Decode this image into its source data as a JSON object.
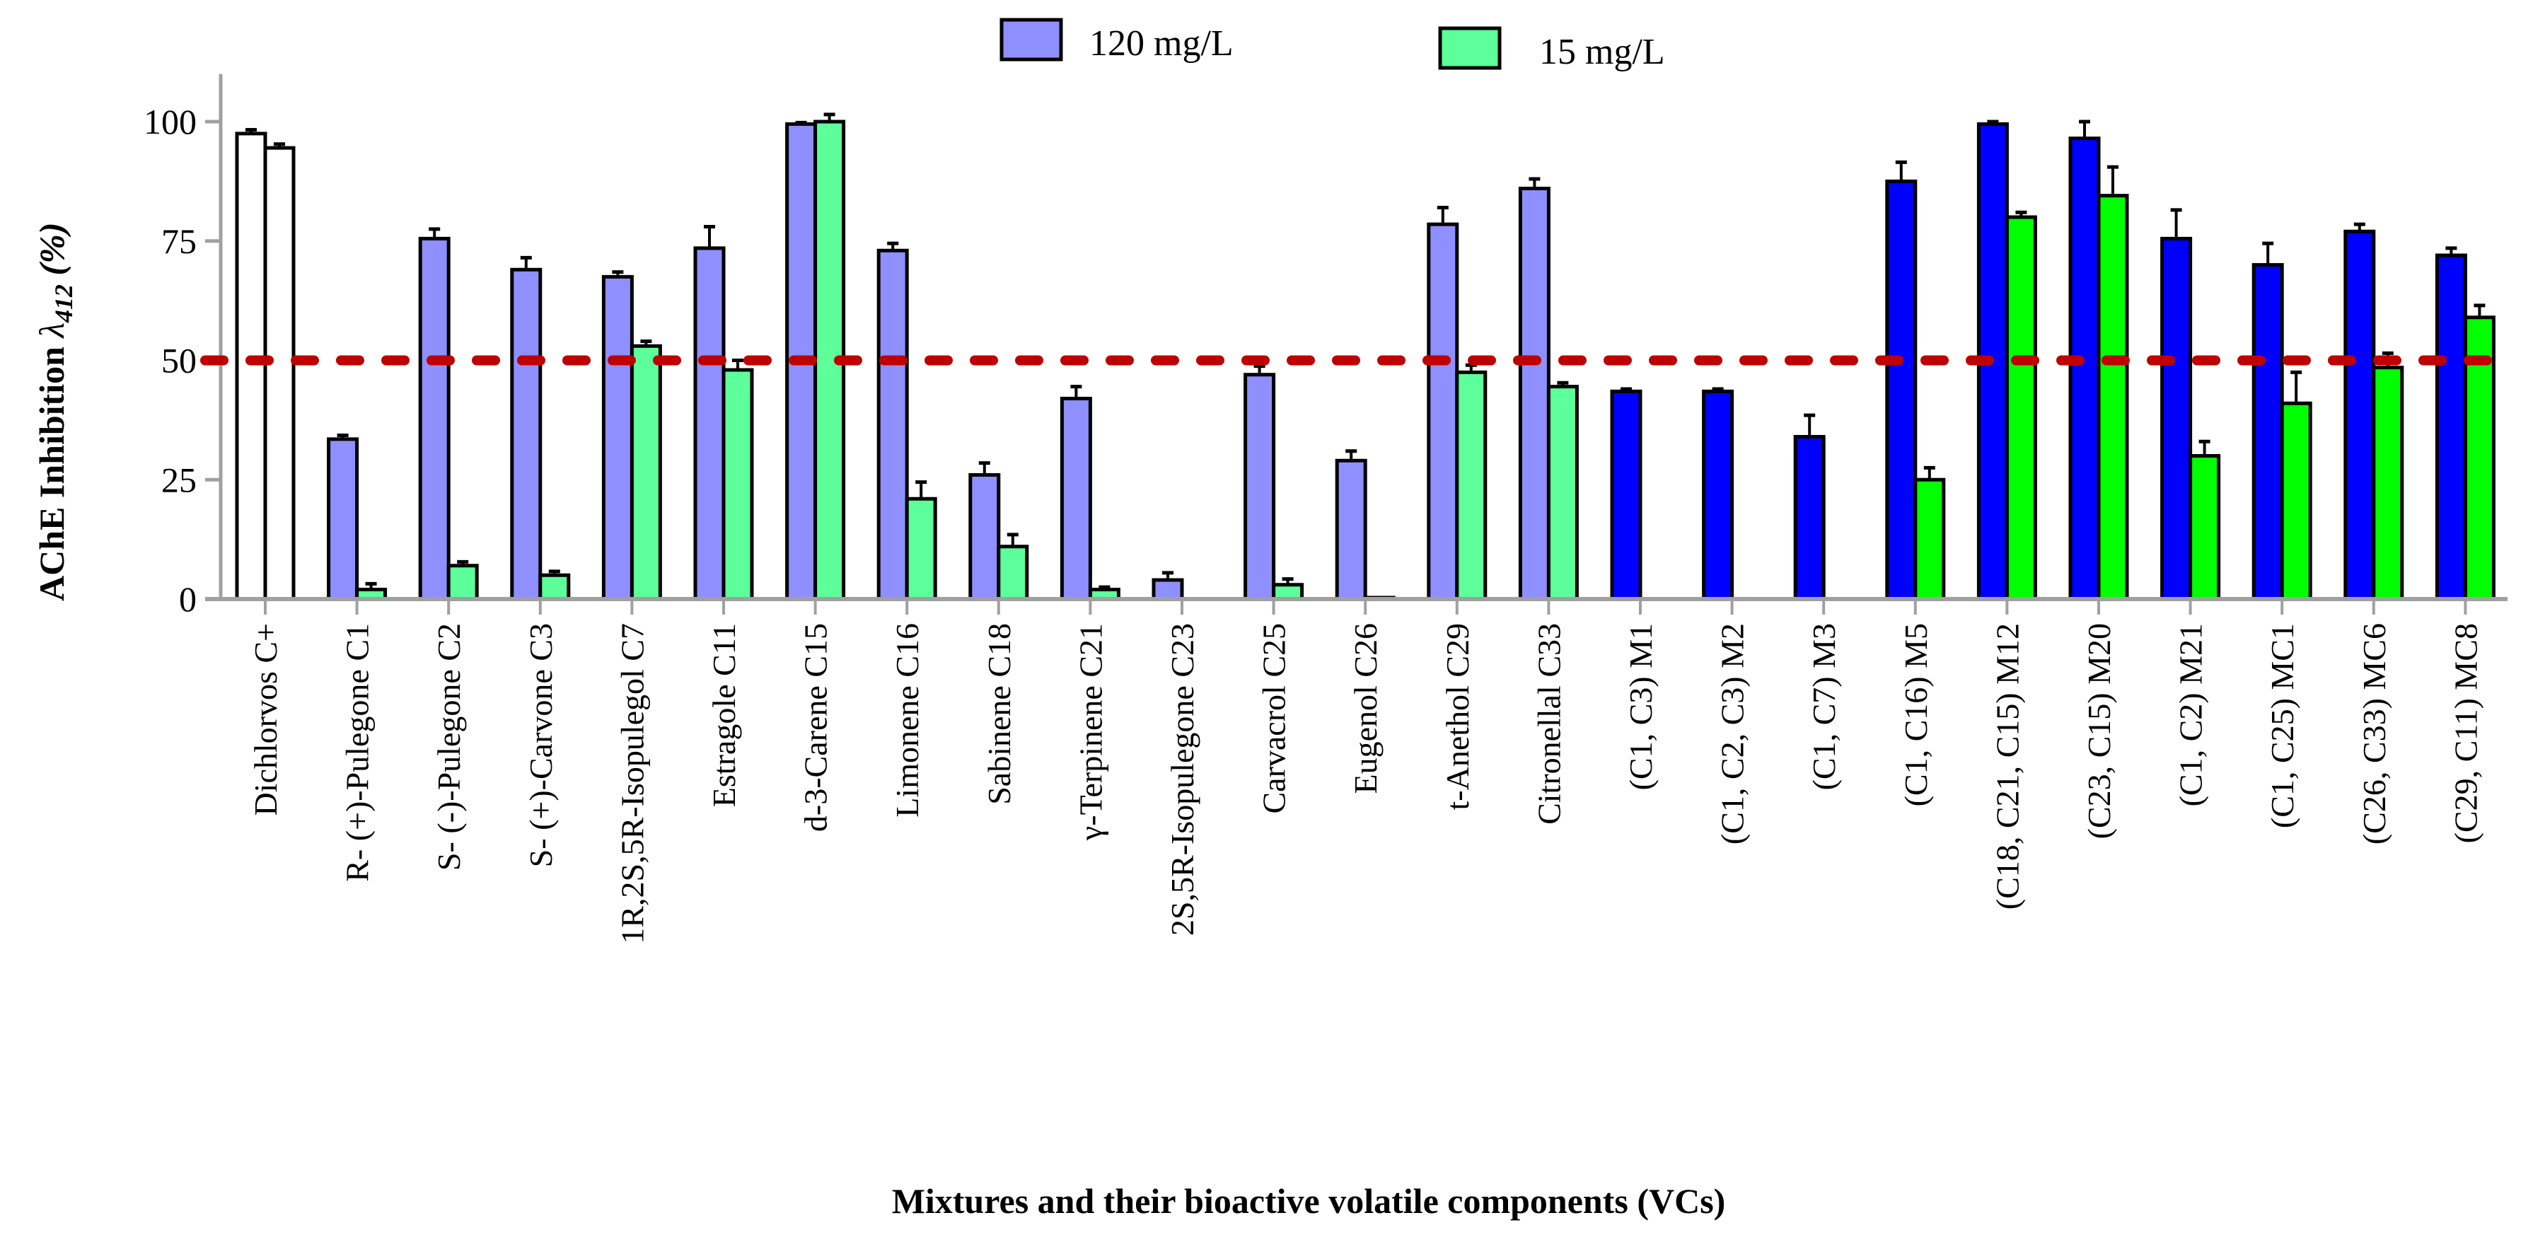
{
  "chart_data": {
    "type": "bar",
    "title": "",
    "xlabel": "Mixtures and their bioactive volatile components (VCs)",
    "ylabel": "AChE Inhibition λ412 (%)",
    "ylabel_main": "AChE Inhibition ",
    "ylabel_lambda": "λ",
    "ylabel_sub": "412",
    "ylabel_unit": " (%)",
    "ylim": [
      0,
      110
    ],
    "yticks": [
      0,
      25,
      50,
      75,
      100
    ],
    "threshold": 50,
    "legend_position": "top-center",
    "categories": [
      "Dichlorvos C+",
      "R- (+)-Pulegone  C1",
      "S- (-)-Pulegone  C2",
      "S- (+)-Carvone  C3",
      "1R,2S,5R-Isopulegol  C7",
      "Estragole  C11",
      "d-3-Carene   C15",
      "Limonene   C16",
      "Sabinene   C18",
      "γ-Terpinene   C21",
      "2S,5R-Isopulegone   C23",
      "Carvacrol   C25",
      "Eugenol   C26",
      "t-Anethol  C29",
      "Citronellal  C33",
      "(C1, C3)  M1",
      "(C1, C2, C3)  M2",
      "(C1, C7)  M3",
      "(C1, C16) M5",
      "(C18, C21, C15)  M12",
      "(C23, C15)  M20",
      "(C1, C2)   M21",
      "(C1, C25) MC1",
      "(C26, C33)  MC6",
      "(C29,  C11) MC8"
    ],
    "groups": [
      "control",
      "vc",
      "vc",
      "vc",
      "vc",
      "vc",
      "vc",
      "vc",
      "vc",
      "vc",
      "vc",
      "vc",
      "vc",
      "vc",
      "vc",
      "mix",
      "mix",
      "mix",
      "mix",
      "mix",
      "mix",
      "mix",
      "mix",
      "mix",
      "mix"
    ],
    "series": [
      {
        "name": "120 mg/L",
        "values": [
          97.5,
          33.5,
          75.5,
          69,
          67.5,
          73.5,
          99.5,
          73,
          26,
          42,
          4,
          47,
          29,
          78.5,
          86,
          43.5,
          43.5,
          34,
          87.5,
          99.5,
          96.5,
          75.5,
          70,
          77,
          72
        ],
        "errors": [
          0.8,
          0.8,
          2,
          2.5,
          1,
          4.5,
          0.3,
          1.5,
          2.5,
          2.5,
          1.5,
          1.8,
          2,
          3.5,
          2,
          0.5,
          0.5,
          4.5,
          4,
          0.5,
          3.5,
          6,
          4.5,
          1.5,
          1.5
        ]
      },
      {
        "name": "15 mg/L",
        "values": [
          94.5,
          2,
          7,
          5,
          53,
          48,
          100,
          21,
          11,
          2,
          null,
          3,
          0.3,
          47.5,
          44.5,
          null,
          null,
          null,
          25,
          80,
          84.5,
          30,
          41,
          48.5,
          59
        ],
        "errors": [
          0.8,
          1.2,
          0.8,
          0.8,
          1,
          2,
          1.5,
          3.5,
          2.5,
          0.5,
          null,
          1.2,
          0,
          1.5,
          0.8,
          null,
          null,
          null,
          2.5,
          1,
          6,
          3,
          6.5,
          3,
          2.5
        ]
      }
    ],
    "colors": {
      "control": [
        "#ffffff",
        "#ffffff"
      ],
      "vc": [
        "#8f8fff",
        "#5cff9a"
      ],
      "mix": [
        "#0000ff",
        "#00ff00"
      ],
      "threshold": "#c00000",
      "axis": "#a0a0a0"
    }
  }
}
